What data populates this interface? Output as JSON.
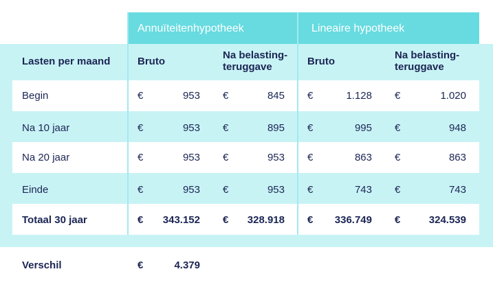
{
  "table": {
    "groups": [
      "Annuïteitenhypotheek",
      "Lineaire hypotheek"
    ],
    "header": [
      "Lasten per maand",
      "Bruto",
      "Na belasting-teruggave",
      "Bruto",
      "Na belasting-teruggave"
    ],
    "currency": "€",
    "rows": [
      [
        "Begin",
        "953",
        "845",
        "1.128",
        "1.020"
      ],
      [
        "Na 10 jaar",
        "953",
        "895",
        "995",
        "948"
      ],
      [
        "Na 20 jaar",
        "953",
        "953",
        "863",
        "863"
      ],
      [
        "Einde",
        "953",
        "953",
        "743",
        "743"
      ]
    ],
    "total": [
      "Totaal 30 jaar",
      "343.152",
      "328.918",
      "336.749",
      "324.539"
    ]
  },
  "difference": {
    "label": "Verschil",
    "value": "4.379"
  }
}
